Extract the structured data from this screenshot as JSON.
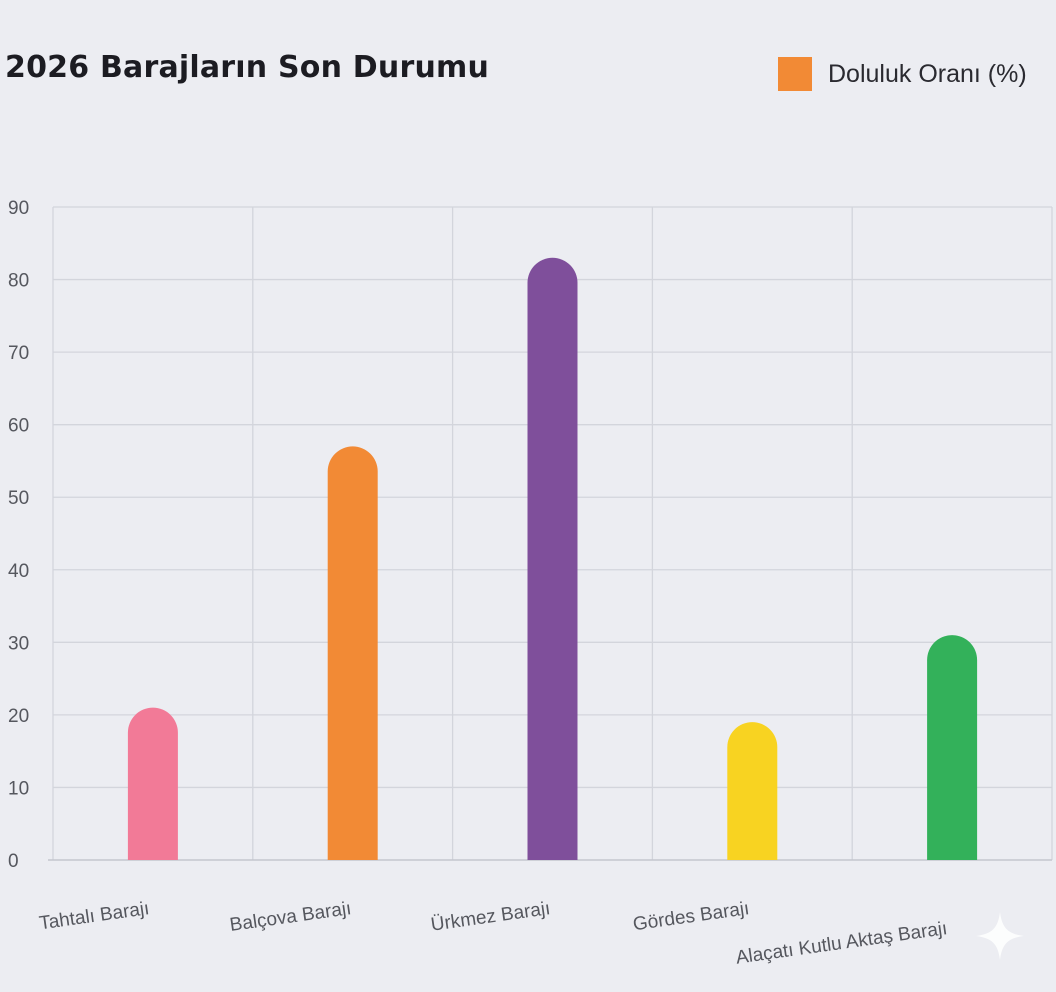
{
  "chart_data": {
    "type": "bar",
    "title": "2026 Barajların Son Durumu",
    "legend": {
      "label": "Doluluk Oranı (%)",
      "position": "top-right"
    },
    "categories": [
      "Tahtalı Barajı",
      "Balçova Barajı",
      "Ürkmez Barajı",
      "Gördes Barajı",
      "Alaçatı Kutlu Aktaş Barajı"
    ],
    "series": [
      {
        "name": "Doluluk Oranı (%)",
        "values": [
          21,
          57,
          83,
          19,
          31
        ],
        "colors": [
          "#f27a97",
          "#f28a35",
          "#7f4f9b",
          "#f8d321",
          "#33b15a"
        ]
      }
    ],
    "ylim": [
      0,
      90
    ],
    "yticks": [
      0,
      10,
      20,
      30,
      40,
      50,
      60,
      70,
      80,
      90
    ],
    "grid": true
  }
}
